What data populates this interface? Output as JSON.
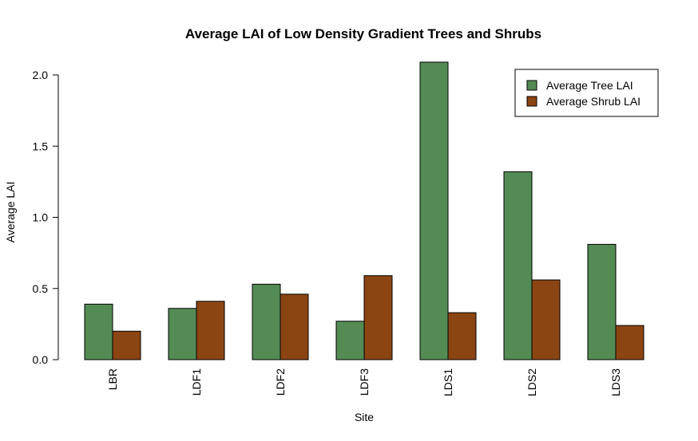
{
  "chart_data": {
    "type": "bar",
    "title": "Average LAI of Low Density Gradient Trees and Shrubs",
    "xlabel": "Site",
    "ylabel": "Average LAI",
    "categories": [
      "LBR",
      "LDF1",
      "LDF2",
      "LDF3",
      "LDS1",
      "LDS2",
      "LDS3"
    ],
    "series": [
      {
        "name": "Average Tree LAI",
        "color": "#548b54",
        "values": [
          0.39,
          0.36,
          0.53,
          0.27,
          2.09,
          1.32,
          0.81
        ]
      },
      {
        "name": "Average Shrub LAI",
        "color": "#8b4513",
        "values": [
          0.2,
          0.41,
          0.46,
          0.59,
          0.33,
          0.56,
          0.24
        ]
      }
    ],
    "ylim": [
      0,
      2.1
    ],
    "yticks": [
      0.0,
      0.5,
      1.0,
      1.5,
      2.0
    ],
    "ytick_labels": [
      "0.0",
      "0.5",
      "1.0",
      "1.5",
      "2.0"
    ],
    "legend_position": "top-right",
    "grid": false
  }
}
